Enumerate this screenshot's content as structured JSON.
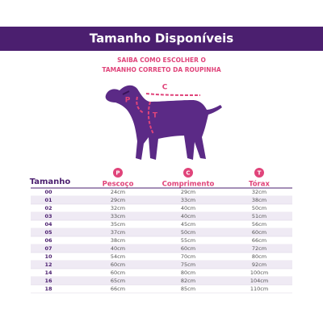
{
  "header": {
    "title": "Tamanho Disponíveis"
  },
  "guide": {
    "line1": "SAIBA COMO ESCOLHER O",
    "line2": "TAMANHO CORRETO DA ROUPINHA",
    "label_p": "P",
    "label_c": "C",
    "label_t": "T"
  },
  "table": {
    "columns": [
      {
        "icon": null,
        "label": "Tamanho"
      },
      {
        "icon": "P",
        "label": "Pescoço"
      },
      {
        "icon": "C",
        "label": "Comprimento"
      },
      {
        "icon": "T",
        "label": "Tórax"
      }
    ],
    "rows": [
      [
        "00",
        "24cm",
        "29cm",
        "32cm"
      ],
      [
        "01",
        "29cm",
        "33cm",
        "38cm"
      ],
      [
        "02",
        "32cm",
        "40cm",
        "50cm"
      ],
      [
        "03",
        "33cm",
        "40cm",
        "51cm"
      ],
      [
        "04",
        "35cm",
        "45cm",
        "56cm"
      ],
      [
        "05",
        "37cm",
        "50cm",
        "60cm"
      ],
      [
        "06",
        "38cm",
        "55cm",
        "66cm"
      ],
      [
        "07",
        "40cm",
        "60cm",
        "72cm"
      ],
      [
        "10",
        "54cm",
        "70cm",
        "80cm"
      ],
      [
        "12",
        "60cm",
        "75cm",
        "92cm"
      ],
      [
        "14",
        "60cm",
        "80cm",
        "100cm"
      ],
      [
        "16",
        "65cm",
        "82cm",
        "104cm"
      ],
      [
        "18",
        "66cm",
        "85cm",
        "110cm"
      ]
    ]
  }
}
